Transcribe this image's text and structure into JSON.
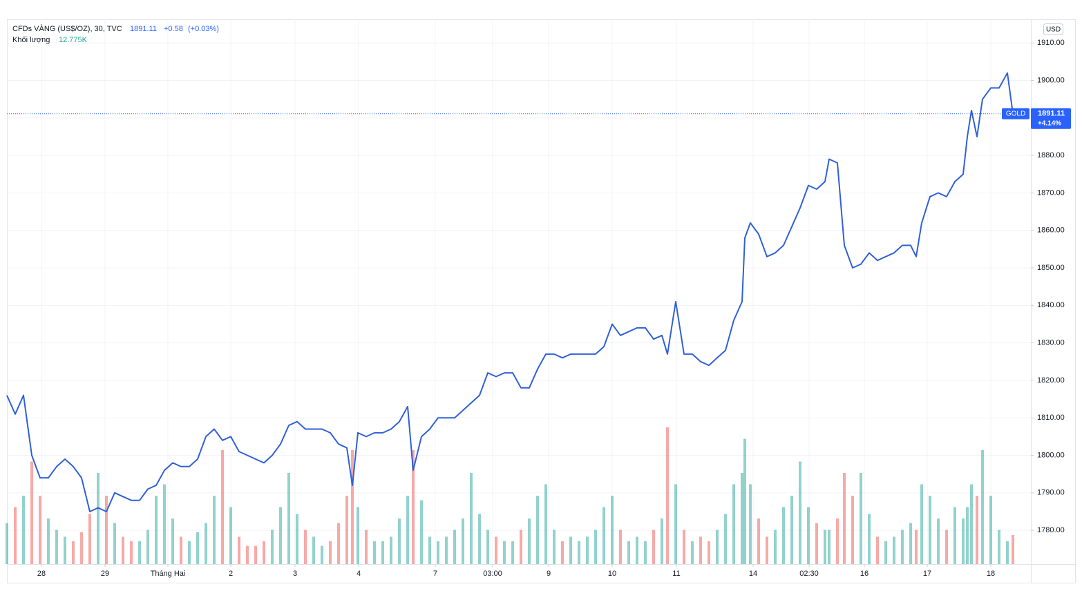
{
  "chart_data": {
    "type": "line",
    "title": "CFDs VÀNG (US$/OZ), 30, TVC",
    "header": {
      "price": "1891.11",
      "change": "+0.58",
      "change_pct": "(+0.03%)"
    },
    "volume_title": "Khối lượng",
    "volume_value_label": "12.775K",
    "currency": "USD",
    "symbol_tag": "GOLD",
    "last_price_label": "1891.11",
    "last_change_label": "+4.14%",
    "color": "#2f5fd8",
    "grid": true,
    "xlim": [
      0,
      741
    ],
    "ylim": [
      1771,
      1916.3
    ],
    "yticks": [
      {
        "value": 1780,
        "label": "1780.00"
      },
      {
        "value": 1790,
        "label": "1790.00"
      },
      {
        "value": 1800,
        "label": "1800.00"
      },
      {
        "value": 1810,
        "label": "1810.00"
      },
      {
        "value": 1820,
        "label": "1820.00"
      },
      {
        "value": 1830,
        "label": "1830.00"
      },
      {
        "value": 1840,
        "label": "1840.00"
      },
      {
        "value": 1850,
        "label": "1850.00"
      },
      {
        "value": 1860,
        "label": "1860.00"
      },
      {
        "value": 1870,
        "label": "1870.00"
      },
      {
        "value": 1880,
        "label": "1880.00"
      },
      {
        "value": 1890,
        "label": "1890.00"
      },
      {
        "value": 1900,
        "label": "1900.00"
      },
      {
        "value": 1910,
        "label": "1910.00"
      }
    ],
    "xticks": [
      {
        "value": 25,
        "label": "28"
      },
      {
        "value": 71,
        "label": "29"
      },
      {
        "value": 116.5,
        "label": "Tháng Hai"
      },
      {
        "value": 162,
        "label": "2"
      },
      {
        "value": 208.5,
        "label": "3"
      },
      {
        "value": 254.5,
        "label": "4"
      },
      {
        "value": 310,
        "label": "7"
      },
      {
        "value": 351.5,
        "label": "03:00"
      },
      {
        "value": 392,
        "label": "9"
      },
      {
        "value": 438,
        "label": "10"
      },
      {
        "value": 484.5,
        "label": "11"
      },
      {
        "value": 540,
        "label": "14"
      },
      {
        "value": 580.5,
        "label": "02:30"
      },
      {
        "value": 620.5,
        "label": "16"
      },
      {
        "value": 666,
        "label": "17"
      },
      {
        "value": 712,
        "label": "18"
      }
    ],
    "x": [
      0,
      6,
      12,
      18,
      24,
      30,
      36,
      42,
      48,
      54,
      60,
      66,
      72,
      78,
      84,
      90,
      96,
      102,
      108,
      114,
      120,
      126,
      132,
      138,
      144,
      150,
      156,
      162,
      168,
      174,
      180,
      186,
      192,
      198,
      204,
      210,
      216,
      222,
      228,
      234,
      240,
      246,
      250,
      254,
      260,
      266,
      272,
      278,
      284,
      290,
      294,
      300,
      306,
      312,
      318,
      324,
      330,
      336,
      342,
      348,
      354,
      360,
      366,
      372,
      378,
      384,
      390,
      396,
      402,
      408,
      414,
      420,
      426,
      432,
      438,
      444,
      450,
      456,
      462,
      468,
      474,
      478,
      484,
      490,
      496,
      502,
      508,
      514,
      520,
      526,
      532,
      534,
      538,
      544,
      550,
      556,
      562,
      568,
      574,
      580,
      586,
      592,
      595,
      601,
      606,
      612,
      618,
      624,
      630,
      636,
      642,
      648,
      654,
      658,
      662,
      668,
      674,
      680,
      686,
      692,
      695,
      698,
      702,
      706,
      712,
      718,
      724,
      728
    ],
    "values": [
      1816,
      1811,
      1816,
      1800,
      1794,
      1794,
      1797,
      1799,
      1797,
      1794,
      1785,
      1786,
      1785,
      1790,
      1789,
      1788,
      1788,
      1791,
      1792,
      1796,
      1798,
      1797,
      1797,
      1799,
      1805,
      1807,
      1804,
      1805,
      1801,
      1800,
      1799,
      1798,
      1800,
      1803,
      1808,
      1809,
      1807,
      1807,
      1807,
      1806,
      1803,
      1802,
      1792,
      1806,
      1805,
      1806,
      1806,
      1807,
      1809,
      1813,
      1796,
      1805,
      1807,
      1810,
      1810,
      1810,
      1812,
      1814,
      1816,
      1822,
      1821,
      1822,
      1822,
      1818,
      1818,
      1823,
      1827,
      1827,
      1826,
      1827,
      1827,
      1827,
      1827,
      1829,
      1835,
      1832,
      1833,
      1834,
      1834,
      1831,
      1832,
      1827,
      1841,
      1827,
      1827,
      1825,
      1824,
      1826,
      1828,
      1836,
      1841,
      1858,
      1862,
      1859,
      1853,
      1854,
      1856,
      1861,
      1866,
      1872,
      1871,
      1873,
      1879,
      1878,
      1856,
      1850,
      1851,
      1854,
      1852,
      1853,
      1854,
      1856,
      1856,
      1853,
      1862,
      1869,
      1870,
      1869,
      1873,
      1875,
      1885,
      1892,
      1885,
      1895,
      1898,
      1898,
      1902,
      1891.11
    ],
    "volume": {
      "vlim": [
        0,
        100
      ],
      "up_color": "#26a69a",
      "down_color": "#ef5350",
      "values": [
        18,
        25,
        30,
        45,
        30,
        20,
        15,
        12,
        10,
        14,
        22,
        40,
        30,
        18,
        12,
        10,
        10,
        15,
        30,
        35,
        20,
        12,
        10,
        14,
        18,
        30,
        50,
        25,
        12,
        8,
        8,
        10,
        15,
        25,
        40,
        22,
        15,
        12,
        8,
        10,
        18,
        30,
        50,
        25,
        15,
        10,
        10,
        12,
        20,
        30,
        50,
        28,
        12,
        10,
        12,
        15,
        20,
        40,
        22,
        15,
        12,
        10,
        10,
        15,
        20,
        30,
        35,
        15,
        10,
        12,
        10,
        12,
        15,
        25,
        30,
        15,
        10,
        12,
        10,
        15,
        20,
        60,
        35,
        15,
        10,
        12,
        10,
        15,
        22,
        35,
        40,
        55,
        35,
        20,
        12,
        15,
        25,
        30,
        45,
        25,
        18,
        15,
        15,
        20,
        40,
        30,
        40,
        22,
        12,
        10,
        12,
        15,
        18,
        15,
        35,
        30,
        20,
        15,
        25,
        20,
        25,
        35,
        30,
        50,
        30,
        15,
        10,
        12.775
      ]
    }
  }
}
